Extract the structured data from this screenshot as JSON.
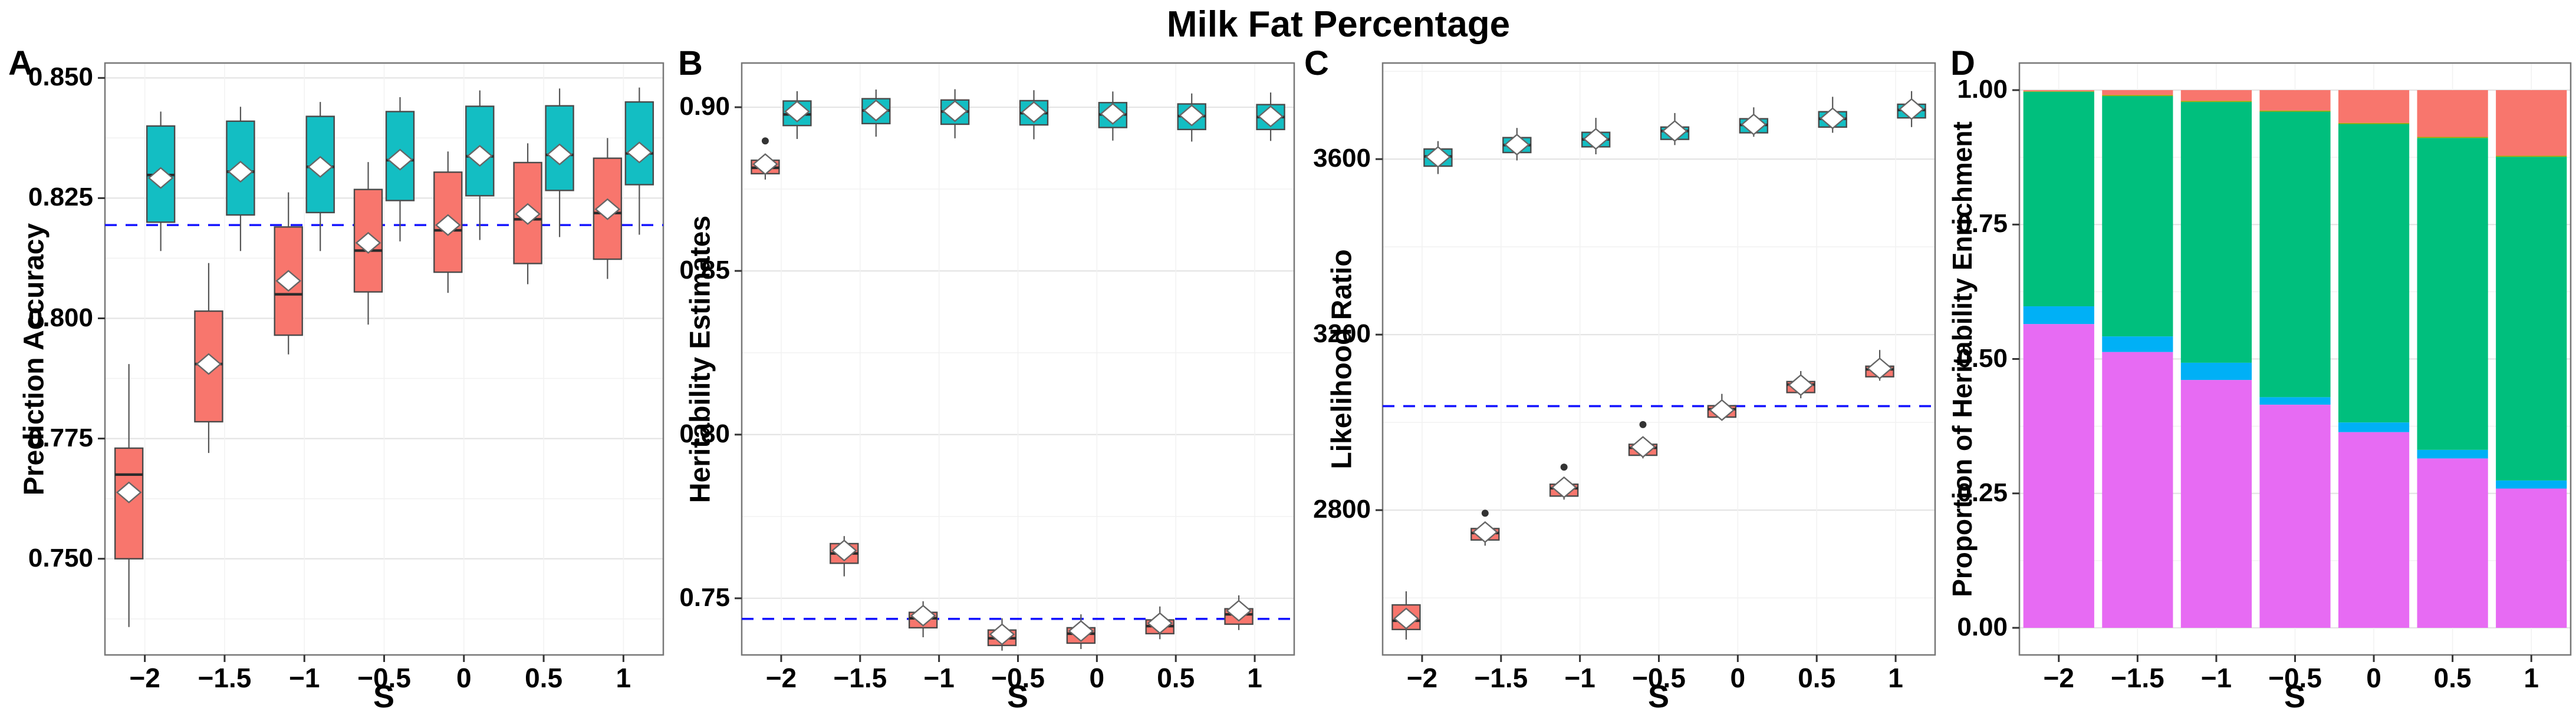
{
  "title": "Milk Fat Percentage",
  "x_axis": {
    "label": "S",
    "tick_labels": [
      "−2",
      "−1.5",
      "−1",
      "−0.5",
      "0",
      "0.5",
      "1"
    ]
  },
  "colors": {
    "coral": "#F8766D",
    "teal": "#13BEC3",
    "magenta": "#E76BF3",
    "blue": "#00B0F6",
    "green": "#00BF7D",
    "olive": "#A3A500",
    "dashed_line": "#1414FF",
    "grid_major": "#E4E4E4",
    "grid_minor": "#F2F2F2",
    "panel_border": "#777777",
    "box_stroke": "#4a4a4a",
    "median_stroke": "#2b2b2b",
    "whisker_stroke": "#555555",
    "mean_fill": "#ffffff",
    "mean_stroke": "#666666",
    "outlier_fill": "#333333"
  },
  "chart_data": [
    {
      "id": "A",
      "panel_label": "A",
      "type": "grouped_box",
      "title": "",
      "ylabel": "Prediction Accuracy",
      "xlabel": "S",
      "categories": [
        "−2",
        "−1.5",
        "−1",
        "−0.5",
        "0",
        "0.5",
        "1"
      ],
      "yticks": [
        0.85,
        0.825,
        0.8,
        0.775,
        0.75
      ],
      "ytick_labels": [
        "0.850",
        "0.825",
        "0.800",
        "0.775",
        "0.750"
      ],
      "minor_ticks": [
        0.8375,
        0.8125,
        0.7875,
        0.7625,
        0.7375
      ],
      "ylim_top": 0.8531,
      "ylim_bottom": 0.73,
      "dashed_line": 0.8194,
      "series": [
        {
          "name": "coral",
          "color_key": "coral",
          "boxes": [
            {
              "s": "−2",
              "whisker_low": 0.7358,
              "q1": 0.75,
              "median": 0.7675,
              "mean": 0.7638,
              "q3": 0.773,
              "whisker_high": 0.7905,
              "outliers": []
            },
            {
              "s": "−1.5",
              "whisker_low": 0.772,
              "q1": 0.7785,
              "median": 0.7905,
              "mean": 0.7905,
              "q3": 0.8015,
              "whisker_high": 0.8115,
              "outliers": []
            },
            {
              "s": "−1",
              "whisker_low": 0.7925,
              "q1": 0.7965,
              "median": 0.805,
              "mean": 0.8078,
              "q3": 0.819,
              "whisker_high": 0.8262,
              "outliers": []
            },
            {
              "s": "−0.5",
              "whisker_low": 0.7987,
              "q1": 0.8055,
              "median": 0.8141,
              "mean": 0.8157,
              "q3": 0.8268,
              "whisker_high": 0.8325,
              "outliers": []
            },
            {
              "s": "0",
              "whisker_low": 0.8053,
              "q1": 0.8096,
              "median": 0.8183,
              "mean": 0.8194,
              "q3": 0.8304,
              "whisker_high": 0.8347,
              "outliers": []
            },
            {
              "s": "0.5",
              "whisker_low": 0.8071,
              "q1": 0.8114,
              "median": 0.8206,
              "mean": 0.8217,
              "q3": 0.8324,
              "whisker_high": 0.8364,
              "outliers": []
            },
            {
              "s": "1",
              "whisker_low": 0.8082,
              "q1": 0.8123,
              "median": 0.8219,
              "mean": 0.8227,
              "q3": 0.8333,
              "whisker_high": 0.8375,
              "outliers": []
            }
          ]
        },
        {
          "name": "teal",
          "color_key": "teal",
          "boxes": [
            {
              "s": "−2",
              "whisker_low": 0.814,
              "q1": 0.82,
              "median": 0.8298,
              "mean": 0.8292,
              "q3": 0.84,
              "whisker_high": 0.843,
              "outliers": []
            },
            {
              "s": "−1.5",
              "whisker_low": 0.814,
              "q1": 0.8215,
              "median": 0.8305,
              "mean": 0.8305,
              "q3": 0.841,
              "whisker_high": 0.844,
              "outliers": []
            },
            {
              "s": "−1",
              "whisker_low": 0.814,
              "q1": 0.822,
              "median": 0.8315,
              "mean": 0.8315,
              "q3": 0.842,
              "whisker_high": 0.845,
              "outliers": []
            },
            {
              "s": "−0.5",
              "whisker_low": 0.816,
              "q1": 0.8245,
              "median": 0.8329,
              "mean": 0.833,
              "q3": 0.843,
              "whisker_high": 0.846,
              "outliers": []
            },
            {
              "s": "0",
              "whisker_low": 0.8163,
              "q1": 0.8255,
              "median": 0.8337,
              "mean": 0.8338,
              "q3": 0.8441,
              "whisker_high": 0.8474,
              "outliers": []
            },
            {
              "s": "0.5",
              "whisker_low": 0.8169,
              "q1": 0.8266,
              "median": 0.834,
              "mean": 0.8341,
              "q3": 0.8442,
              "whisker_high": 0.8478,
              "outliers": []
            },
            {
              "s": "1",
              "whisker_low": 0.8174,
              "q1": 0.8278,
              "median": 0.8343,
              "mean": 0.8345,
              "q3": 0.845,
              "whisker_high": 0.848,
              "outliers": []
            }
          ]
        }
      ]
    },
    {
      "id": "B",
      "panel_label": "B",
      "type": "grouped_box",
      "title": "",
      "ylabel": "Heritability Estimates",
      "xlabel": "S",
      "categories": [
        "−2",
        "−1.5",
        "−1",
        "−0.5",
        "0",
        "0.5",
        "1"
      ],
      "yticks": [
        0.9,
        0.85,
        0.8,
        0.75
      ],
      "ytick_labels": [
        "0.90",
        "0.85",
        "0.80",
        "0.75"
      ],
      "minor_ticks": [
        0.875,
        0.825,
        0.775
      ],
      "ylim_top": 0.9135,
      "ylim_bottom": 0.7327,
      "dashed_line": 0.7437,
      "series": [
        {
          "name": "coral",
          "color_key": "coral",
          "boxes": [
            {
              "s": "−2",
              "whisker_low": 0.8779,
              "q1": 0.8797,
              "median": 0.8815,
              "mean": 0.8826,
              "q3": 0.8838,
              "whisker_high": 0.8853,
              "outliers": [
                0.8897
              ]
            },
            {
              "s": "−1.5",
              "whisker_low": 0.7567,
              "q1": 0.7607,
              "median": 0.7637,
              "mean": 0.7646,
              "q3": 0.7667,
              "whisker_high": 0.769,
              "outliers": []
            },
            {
              "s": "−1",
              "whisker_low": 0.7381,
              "q1": 0.741,
              "median": 0.7439,
              "mean": 0.7447,
              "q3": 0.7457,
              "whisker_high": 0.7491,
              "outliers": []
            },
            {
              "s": "−0.5",
              "whisker_low": 0.734,
              "q1": 0.7356,
              "median": 0.7378,
              "mean": 0.739,
              "q3": 0.7403,
              "whisker_high": 0.7439,
              "outliers": []
            },
            {
              "s": "0",
              "whisker_low": 0.7345,
              "q1": 0.7363,
              "median": 0.7392,
              "mean": 0.74,
              "q3": 0.741,
              "whisker_high": 0.7451,
              "outliers": []
            },
            {
              "s": "0.5",
              "whisker_low": 0.7375,
              "q1": 0.7392,
              "median": 0.7415,
              "mean": 0.7424,
              "q3": 0.7434,
              "whisker_high": 0.7475,
              "outliers": []
            },
            {
              "s": "1",
              "whisker_low": 0.7403,
              "q1": 0.7421,
              "median": 0.7451,
              "mean": 0.7462,
              "q3": 0.7468,
              "whisker_high": 0.7509,
              "outliers": []
            }
          ]
        },
        {
          "name": "teal",
          "color_key": "teal",
          "boxes": [
            {
              "s": "−2",
              "whisker_low": 0.8903,
              "q1": 0.8944,
              "median": 0.8978,
              "mean": 0.8987,
              "q3": 0.9019,
              "whisker_high": 0.9049,
              "outliers": []
            },
            {
              "s": "−1.5",
              "whisker_low": 0.891,
              "q1": 0.895,
              "median": 0.899,
              "mean": 0.899,
              "q3": 0.9026,
              "whisker_high": 0.9054,
              "outliers": []
            },
            {
              "s": "−1",
              "whisker_low": 0.8905,
              "q1": 0.8948,
              "median": 0.8987,
              "mean": 0.8988,
              "q3": 0.9022,
              "whisker_high": 0.9055,
              "outliers": []
            },
            {
              "s": "−0.5",
              "whisker_low": 0.8902,
              "q1": 0.8946,
              "median": 0.8982,
              "mean": 0.8985,
              "q3": 0.902,
              "whisker_high": 0.9052,
              "outliers": []
            },
            {
              "s": "0",
              "whisker_low": 0.8898,
              "q1": 0.8938,
              "median": 0.8978,
              "mean": 0.898,
              "q3": 0.9014,
              "whisker_high": 0.9048,
              "outliers": []
            },
            {
              "s": "0.5",
              "whisker_low": 0.8895,
              "q1": 0.8932,
              "median": 0.8973,
              "mean": 0.8975,
              "q3": 0.901,
              "whisker_high": 0.9042,
              "outliers": []
            },
            {
              "s": "1",
              "whisker_low": 0.8897,
              "q1": 0.8932,
              "median": 0.897,
              "mean": 0.8972,
              "q3": 0.9008,
              "whisker_high": 0.9045,
              "outliers": []
            }
          ]
        }
      ]
    },
    {
      "id": "C",
      "panel_label": "C",
      "type": "grouped_box",
      "title": "",
      "ylabel": "Likelihood Ratio",
      "xlabel": "S",
      "categories": [
        "−2",
        "−1.5",
        "−1",
        "−0.5",
        "0",
        "0.5",
        "1"
      ],
      "yticks": [
        3600,
        3200,
        2800
      ],
      "ytick_labels": [
        "3600",
        "3200",
        "2800"
      ],
      "minor_ticks": [
        3800,
        3400,
        3000,
        2600
      ],
      "ylim_top": 3819,
      "ylim_bottom": 2470,
      "dashed_line": 3037,
      "series": [
        {
          "name": "coral",
          "color_key": "coral",
          "boxes": [
            {
              "s": "−2",
              "whisker_low": 2505,
              "q1": 2528,
              "median": 2548,
              "mean": 2553,
              "q3": 2584,
              "whisker_high": 2615,
              "outliers": []
            },
            {
              "s": "−1.5",
              "whisker_low": 2719,
              "q1": 2732,
              "median": 2748,
              "mean": 2750,
              "q3": 2758,
              "whisker_high": 2762,
              "outliers": [
                2793
              ]
            },
            {
              "s": "−1",
              "whisker_low": 2824,
              "q1": 2832,
              "median": 2850,
              "mean": 2852,
              "q3": 2859,
              "whisker_high": 2862,
              "outliers": [
                2898
              ]
            },
            {
              "s": "−0.5",
              "whisker_low": 2918,
              "q1": 2925,
              "median": 2942,
              "mean": 2944,
              "q3": 2950,
              "whisker_high": 2953,
              "outliers": [
                2995
              ]
            },
            {
              "s": "0",
              "whisker_low": 3005,
              "q1": 3012,
              "median": 3030,
              "mean": 3028,
              "q3": 3038,
              "whisker_high": 3065,
              "outliers": []
            },
            {
              "s": "0.5",
              "whisker_low": 3055,
              "q1": 3068,
              "median": 3086,
              "mean": 3085,
              "q3": 3093,
              "whisker_high": 3117,
              "outliers": []
            },
            {
              "s": "1",
              "whisker_low": 3095,
              "q1": 3104,
              "median": 3121,
              "mean": 3123,
              "q3": 3128,
              "whisker_high": 3165,
              "outliers": []
            }
          ]
        },
        {
          "name": "teal",
          "color_key": "teal",
          "boxes": [
            {
              "s": "−2",
              "whisker_low": 3566,
              "q1": 3584,
              "median": 3606,
              "mean": 3605,
              "q3": 3623,
              "whisker_high": 3641,
              "outliers": []
            },
            {
              "s": "−1.5",
              "whisker_low": 3597,
              "q1": 3615,
              "median": 3632,
              "mean": 3633,
              "q3": 3649,
              "whisker_high": 3671,
              "outliers": []
            },
            {
              "s": "−1",
              "whisker_low": 3611,
              "q1": 3628,
              "median": 3645,
              "mean": 3646,
              "q3": 3661,
              "whisker_high": 3694,
              "outliers": []
            },
            {
              "s": "−0.5",
              "whisker_low": 3632,
              "q1": 3645,
              "median": 3664,
              "mean": 3664,
              "q3": 3673,
              "whisker_high": 3705,
              "outliers": []
            },
            {
              "s": "0",
              "whisker_low": 3651,
              "q1": 3660,
              "median": 3678,
              "mean": 3679,
              "q3": 3692,
              "whisker_high": 3718,
              "outliers": []
            },
            {
              "s": "0.5",
              "whisker_low": 3660,
              "q1": 3673,
              "median": 3692,
              "mean": 3693,
              "q3": 3708,
              "whisker_high": 3742,
              "outliers": []
            },
            {
              "s": "1",
              "whisker_low": 3673,
              "q1": 3694,
              "median": 3712,
              "mean": 3714,
              "q3": 3725,
              "whisker_high": 3755,
              "outliers": []
            }
          ]
        }
      ]
    },
    {
      "id": "D",
      "panel_label": "D",
      "type": "stacked_bar",
      "title": "",
      "ylabel": "Proportion of Heritability Enrichment",
      "xlabel": "S",
      "categories": [
        "−2",
        "−1.5",
        "−1",
        "−0.5",
        "0",
        "0.5",
        "1"
      ],
      "yticks": [
        1.0,
        0.75,
        0.5,
        0.25,
        0.0
      ],
      "ytick_labels": [
        "1.00",
        "0.75",
        "0.50",
        "0.25",
        "0.00"
      ],
      "minor_ticks": [
        0.875,
        0.625,
        0.375,
        0.125
      ],
      "ylim_top": 1.0504,
      "ylim_bottom": -0.0504,
      "dashed_line": null,
      "segment_color_keys": [
        "magenta",
        "blue",
        "green",
        "olive",
        "coral"
      ],
      "segment_names": [
        "magenta-bottom",
        "blue-band",
        "green-middle",
        "olive-sliver",
        "salmon-top"
      ],
      "bars": [
        {
          "s": "−2",
          "values": [
            0.565,
            0.033,
            0.399,
            0.001,
            0.002
          ]
        },
        {
          "s": "−1.5",
          "values": [
            0.513,
            0.029,
            0.447,
            0.002,
            0.009
          ]
        },
        {
          "s": "−1",
          "values": [
            0.461,
            0.032,
            0.485,
            0.002,
            0.02
          ]
        },
        {
          "s": "−0.5",
          "values": [
            0.415,
            0.014,
            0.531,
            0.002,
            0.038
          ]
        },
        {
          "s": "0",
          "values": [
            0.364,
            0.018,
            0.555,
            0.002,
            0.061
          ]
        },
        {
          "s": "0.5",
          "values": [
            0.315,
            0.016,
            0.58,
            0.002,
            0.087
          ]
        },
        {
          "s": "1",
          "values": [
            0.259,
            0.015,
            0.602,
            0.002,
            0.122
          ]
        }
      ]
    }
  ]
}
